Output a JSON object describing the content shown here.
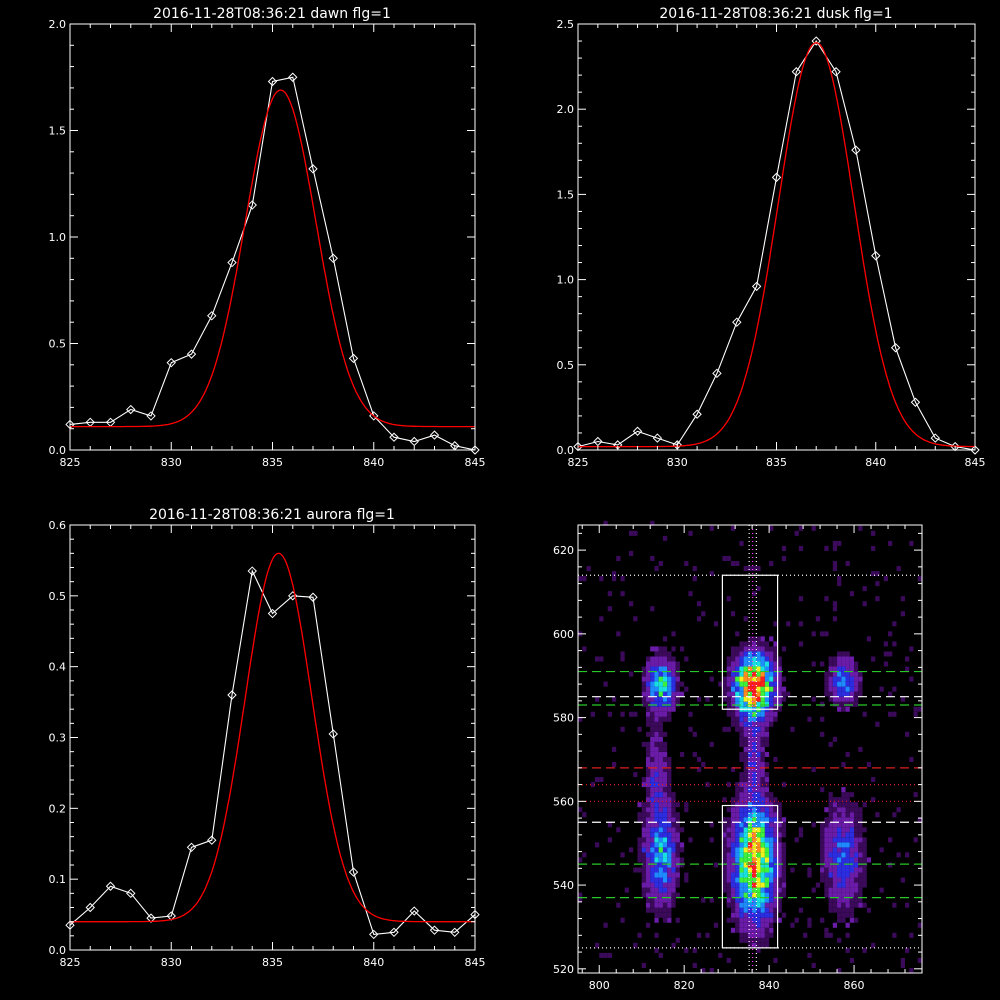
{
  "chart_data": [
    {
      "type": "line",
      "title": "2016-11-28T08:36:21 dawn flg=1",
      "xlim": [
        825,
        845
      ],
      "ylim": [
        0.0,
        2.0
      ],
      "xticks": [
        825,
        830,
        835,
        840,
        845
      ],
      "yticks": [
        "0.0",
        "0.5",
        "1.0",
        "1.5",
        "2.0"
      ],
      "series": [
        {
          "color": "#ffffff",
          "marker": "diamond",
          "x": [
            825,
            826,
            827,
            828,
            829,
            830,
            831,
            832,
            833,
            834,
            835,
            836,
            837,
            838,
            839,
            840,
            841,
            842,
            843,
            844,
            845
          ],
          "y": [
            0.12,
            0.13,
            0.13,
            0.19,
            0.16,
            0.41,
            0.45,
            0.63,
            0.88,
            1.15,
            1.73,
            1.75,
            1.32,
            0.9,
            0.43,
            0.16,
            0.06,
            0.04,
            0.07,
            0.02,
            0.0
          ]
        },
        {
          "color": "#ff0000",
          "model": "gaussian",
          "center": 835.4,
          "sigma": 1.75,
          "amplitude": 1.58,
          "baseline": 0.11
        }
      ]
    },
    {
      "type": "line",
      "title": "2016-11-28T08:36:21 dusk flg=1",
      "xlim": [
        825,
        845
      ],
      "ylim": [
        0.0,
        2.5
      ],
      "xticks": [
        825,
        830,
        835,
        840,
        845
      ],
      "yticks": [
        "0.0",
        "0.5",
        "1.0",
        "1.5",
        "2.0",
        "2.5"
      ],
      "series": [
        {
          "color": "#ffffff",
          "marker": "diamond",
          "x": [
            825,
            826,
            827,
            828,
            829,
            830,
            831,
            832,
            833,
            834,
            835,
            836,
            837,
            838,
            839,
            840,
            841,
            842,
            843,
            844,
            845
          ],
          "y": [
            0.02,
            0.05,
            0.03,
            0.11,
            0.07,
            0.03,
            0.21,
            0.45,
            0.75,
            0.96,
            1.6,
            2.22,
            2.4,
            2.22,
            1.76,
            1.14,
            0.6,
            0.28,
            0.07,
            0.02,
            0.0
          ]
        },
        {
          "color": "#ff0000",
          "model": "gaussian",
          "center": 837.0,
          "sigma": 1.9,
          "amplitude": 2.37,
          "baseline": 0.02
        }
      ]
    },
    {
      "type": "line",
      "title": "2016-11-28T08:36:21 aurora flg=1",
      "xlim": [
        825,
        845
      ],
      "ylim": [
        0.0,
        0.6
      ],
      "xticks": [
        825,
        830,
        835,
        840,
        845
      ],
      "yticks": [
        "0.0",
        "0.1",
        "0.2",
        "0.3",
        "0.4",
        "0.5",
        "0.6"
      ],
      "series": [
        {
          "color": "#ffffff",
          "marker": "diamond",
          "x": [
            825,
            826,
            827,
            828,
            829,
            830,
            831,
            832,
            833,
            834,
            835,
            836,
            837,
            838,
            839,
            840,
            841,
            842,
            843,
            844,
            845
          ],
          "y": [
            0.035,
            0.06,
            0.09,
            0.08,
            0.045,
            0.048,
            0.145,
            0.155,
            0.36,
            0.535,
            0.475,
            0.5,
            0.498,
            0.305,
            0.11,
            0.022,
            0.025,
            0.055,
            0.028,
            0.025,
            0.05
          ]
        },
        {
          "color": "#ff0000",
          "model": "gaussian",
          "center": 835.3,
          "sigma": 1.65,
          "amplitude": 0.52,
          "baseline": 0.04
        }
      ]
    },
    {
      "type": "heatmap",
      "xlim": [
        795,
        876
      ],
      "ylim": [
        519,
        626
      ],
      "xticks": [
        800,
        820,
        840,
        860
      ],
      "yticks": [
        520,
        540,
        560,
        580,
        600,
        620
      ],
      "colormap": [
        "#3b0a5a",
        "#6a1ca8",
        "#2c2ce0",
        "#1e8cff",
        "#19e0e0",
        "#3cf03c",
        "#f0f01e",
        "#ff8c1e",
        "#ff1e1e"
      ],
      "blobs": [
        {
          "x": 836,
          "y": 587,
          "sx": 3.0,
          "sy": 5.0,
          "peak": 1.0
        },
        {
          "x": 836,
          "y": 545,
          "sx": 3.2,
          "sy": 9.0,
          "peak": 0.85
        },
        {
          "x": 814,
          "y": 587,
          "sx": 2.2,
          "sy": 4.0,
          "peak": 0.55
        },
        {
          "x": 814,
          "y": 547,
          "sx": 2.5,
          "sy": 8.0,
          "peak": 0.42
        },
        {
          "x": 857,
          "y": 588,
          "sx": 2.2,
          "sy": 3.5,
          "peak": 0.38
        },
        {
          "x": 857,
          "y": 546,
          "sx": 2.8,
          "sy": 8.0,
          "peak": 0.33
        },
        {
          "x": 836,
          "y": 570,
          "sx": 1.5,
          "sy": 6.0,
          "peak": 0.22
        },
        {
          "x": 813,
          "y": 567,
          "sx": 1.8,
          "sy": 7.0,
          "peak": 0.18
        }
      ],
      "boxes": [
        {
          "x": [
            829,
            842
          ],
          "y": [
            582,
            614
          ],
          "color": "#ffffff"
        },
        {
          "x": [
            829,
            842
          ],
          "y": [
            525,
            559
          ],
          "color": "#ffffff"
        }
      ],
      "hlines": [
        {
          "y": 614,
          "color": "#ffffff",
          "style": "dotted"
        },
        {
          "y": 525,
          "color": "#ffffff",
          "style": "dotted"
        },
        {
          "y": 591,
          "color": "#28c828",
          "style": "dashed"
        },
        {
          "y": 583,
          "color": "#28c828",
          "style": "dashed"
        },
        {
          "y": 585,
          "color": "#ffffff",
          "style": "dashed"
        },
        {
          "y": 545,
          "color": "#28c828",
          "style": "dashed"
        },
        {
          "y": 537,
          "color": "#28c828",
          "style": "dashed"
        },
        {
          "y": 555,
          "color": "#ffffff",
          "style": "dashed"
        },
        {
          "y": 568,
          "color": "#dc1e1e",
          "style": "dashed"
        },
        {
          "y": 564,
          "color": "#dc1e1e",
          "style": "dotted"
        },
        {
          "y": 560,
          "color": "#dc1e1e",
          "style": "dotted"
        }
      ],
      "vlines": [
        {
          "x": 835.3,
          "color": "#ffffff",
          "style": "dotted"
        },
        {
          "x": 837.0,
          "color": "#ffffff",
          "style": "dotted"
        },
        {
          "x": 836.1,
          "color": "#ff3cff",
          "style": "dotted"
        }
      ]
    }
  ]
}
